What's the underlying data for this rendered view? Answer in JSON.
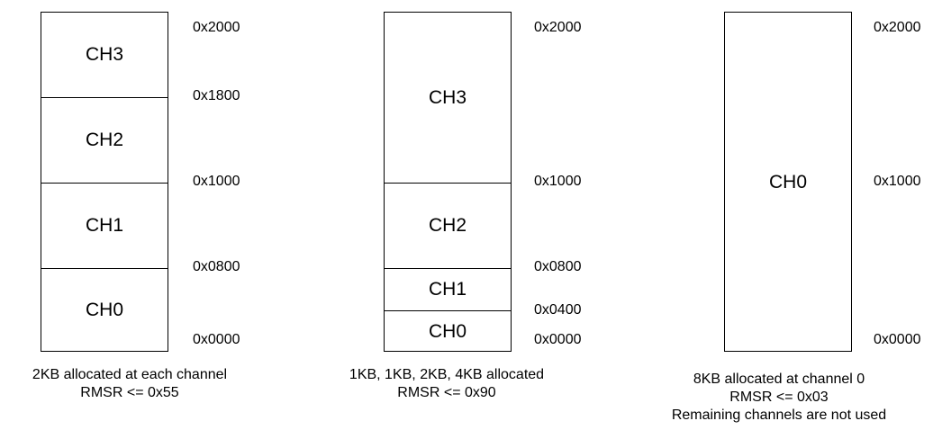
{
  "layouts": [
    {
      "segments": [
        "CH3",
        "CH2",
        "CH1",
        "CH0"
      ],
      "addresses": [
        "0x2000",
        "0x1800",
        "0x1000",
        "0x0800",
        "0x0000"
      ],
      "caption": [
        "2KB allocated at each channel",
        "RMSR <= 0x55"
      ]
    },
    {
      "segments": [
        "CH3",
        "CH2",
        "CH1",
        "CH0"
      ],
      "addresses": [
        "0x2000",
        "0x1000",
        "0x0800",
        "0x0400",
        "0x0000"
      ],
      "caption": [
        "1KB, 1KB, 2KB, 4KB allocated",
        "RMSR <= 0x90"
      ]
    },
    {
      "segments": [
        "CH0"
      ],
      "addresses": [
        "0x2000",
        "0x1000",
        "0x0000"
      ],
      "caption": [
        "8KB allocated at channel 0",
        "RMSR <= 0x03",
        "Remaining channels are not used"
      ]
    }
  ]
}
